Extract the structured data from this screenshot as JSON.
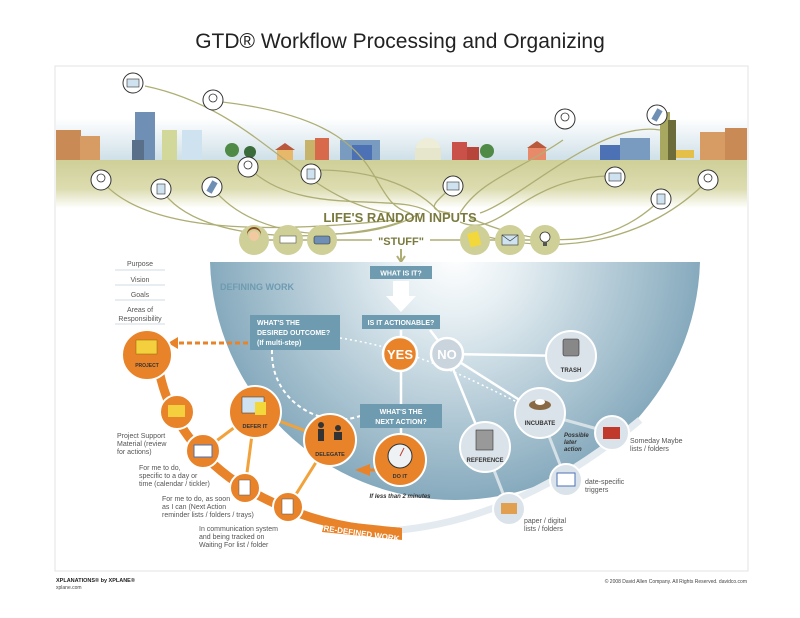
{
  "title": "GTD® Workflow Processing and Organizing",
  "inputs": {
    "heading": "LIFE'S RANDOM INPUTS",
    "stuff": "\"STUFF\"",
    "icons": [
      "person-icon",
      "paper-stack-icon",
      "phone-icon",
      "sticky-note-icon",
      "envelope-icon",
      "lightbulb-icon"
    ]
  },
  "defining": {
    "heading": "DEFINING WORK",
    "what_is_it": "WHAT IS IT?",
    "actionable": "IS IT ACTIONABLE?",
    "yes": "YES",
    "no": "NO",
    "desired_outcome": [
      "WHAT'S THE",
      "DESIRED OUTCOME?",
      "(If multi-step)"
    ],
    "next_action": [
      "WHAT'S THE",
      "NEXT ACTION?"
    ]
  },
  "horizons": [
    "Purpose",
    "Vision",
    "Goals",
    "Areas of",
    "Responsibility"
  ],
  "nodes": {
    "project": "PROJECT",
    "defer": "DEFER IT",
    "delegate": "DELEGATE",
    "do_it": "DO IT",
    "do_it_note": "If less than 2 minutes",
    "trash": "TRASH",
    "incubate": "INCUBATE",
    "reference": "REFERENCE",
    "incubate_note": [
      "Possible",
      "later",
      "action"
    ]
  },
  "action_labels": {
    "support": [
      "Project Support",
      "Material (review",
      "for actions)"
    ],
    "calendar": [
      "For me to do,",
      "specific to a day or",
      "time (calendar / tickler)"
    ],
    "next": [
      "For me to do, as soon",
      "as I can (Next Action",
      "reminder lists / folders / trays)"
    ],
    "waiting": [
      "In communication system",
      "and being tracked on",
      "Waiting For list / folder"
    ],
    "predefined": "PRE-DEFINED WORK"
  },
  "nonaction_labels": {
    "someday": [
      "Someday Maybe",
      "lists / folders"
    ],
    "triggers": [
      "date-specific",
      "triggers"
    ],
    "paper": [
      "paper / digital",
      "lists / folders"
    ]
  },
  "footer": {
    "brand": "XPLANATIONS® by XPLANE®",
    "site": "xplane.com",
    "copyright": "© 2008 David Allen Company.  All Rights Reserved.  davidco.com"
  },
  "colors": {
    "orange": "#e8832a",
    "steel_blue": "#6e9bb0",
    "olive": "#8a8a4a",
    "ground": "#d4d4a0",
    "gray_node": "#dbe3ea"
  }
}
